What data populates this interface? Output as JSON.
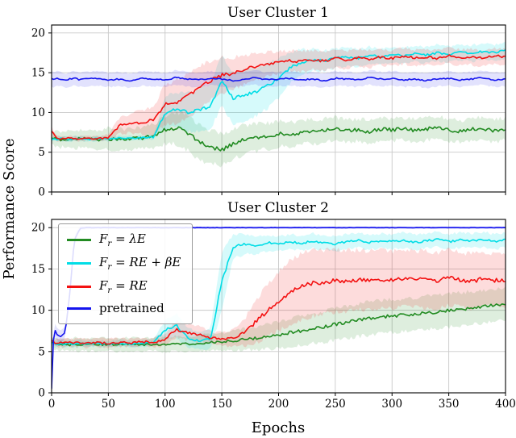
{
  "figure": {
    "xlabel": "Epochs",
    "ylabel": "Performance Score",
    "background": "#ffffff",
    "grid_color": "#c9c9c9",
    "axis_color": "#000000"
  },
  "chart_data": [
    {
      "type": "line",
      "title": "User Cluster 1",
      "xlim": [
        0,
        400
      ],
      "ylim": [
        0,
        21
      ],
      "xticks": [
        0,
        50,
        100,
        150,
        200,
        250,
        300,
        350,
        400
      ],
      "yticks": [
        0,
        5,
        10,
        15,
        20
      ],
      "grid": true,
      "legend": {
        "show": false
      },
      "x": [
        0,
        2,
        5,
        8,
        12,
        16,
        20,
        25,
        30,
        40,
        50,
        60,
        70,
        80,
        90,
        100,
        110,
        120,
        130,
        140,
        150,
        160,
        170,
        180,
        190,
        200,
        210,
        220,
        230,
        240,
        250,
        260,
        270,
        280,
        290,
        300,
        310,
        320,
        330,
        340,
        350,
        360,
        370,
        380,
        390,
        400
      ],
      "series": [
        {
          "name": "fr-lambda-e",
          "label": "F_r = λE",
          "math": true,
          "color": "#228B22",
          "band_alpha": 0.15,
          "noise": 0.28,
          "values": [
            6.8,
            6.7,
            6.7,
            6.6,
            6.7,
            6.7,
            6.6,
            6.7,
            6.7,
            6.6,
            6.7,
            6.6,
            6.7,
            6.8,
            7.0,
            7.8,
            8.1,
            7.4,
            6.3,
            5.6,
            5.3,
            6.0,
            6.6,
            6.8,
            7.0,
            7.3,
            7.2,
            7.5,
            7.6,
            7.7,
            7.9,
            7.7,
            7.8,
            7.6,
            7.9,
            7.8,
            8.0,
            7.7,
            7.9,
            8.1,
            7.8,
            7.6,
            7.9,
            8.0,
            7.7,
            7.9
          ],
          "band": [
            0.8,
            0.9,
            0.9,
            1.0,
            1.0,
            1.0,
            1.1,
            1.1,
            1.1,
            1.2,
            1.3,
            1.3,
            1.3,
            1.4,
            1.5,
            1.8,
            2.0,
            2.2,
            2.2,
            2.1,
            2.0,
            1.9,
            1.8,
            1.7,
            1.6,
            1.6,
            1.5,
            1.5,
            1.5,
            1.5,
            1.5,
            1.4,
            1.4,
            1.4,
            1.4,
            1.4,
            1.4,
            1.4,
            1.4,
            1.4,
            1.4,
            1.4,
            1.4,
            1.4,
            1.4,
            1.4
          ]
        },
        {
          "name": "fr-re-beta-e",
          "label": "F_r = RE + βE",
          "math": true,
          "color": "#00DDE6",
          "band_alpha": 0.16,
          "noise": 0.2,
          "values": [
            6.7,
            6.7,
            6.6,
            6.7,
            6.7,
            6.6,
            6.7,
            6.7,
            6.6,
            6.7,
            6.7,
            6.8,
            6.7,
            6.8,
            6.9,
            9.9,
            10.4,
            10.0,
            10.3,
            10.8,
            14.0,
            11.8,
            12.2,
            12.6,
            13.3,
            14.3,
            15.6,
            16.3,
            16.6,
            16.5,
            16.8,
            17.0,
            16.8,
            17.2,
            17.0,
            17.3,
            17.1,
            17.4,
            17.2,
            17.5,
            17.3,
            17.6,
            17.4,
            17.7,
            17.5,
            17.8
          ],
          "band": [
            0.3,
            0.3,
            0.3,
            0.3,
            0.3,
            0.3,
            0.3,
            0.3,
            0.3,
            0.3,
            0.3,
            0.3,
            0.3,
            0.3,
            0.3,
            2.0,
            2.2,
            2.4,
            2.6,
            2.9,
            3.1,
            3.3,
            3.2,
            3.0,
            2.8,
            2.5,
            2.0,
            1.6,
            1.4,
            1.3,
            1.2,
            1.2,
            1.1,
            1.1,
            1.0,
            1.0,
            1.0,
            1.0,
            1.0,
            1.0,
            1.0,
            1.0,
            1.0,
            1.0,
            1.0,
            1.0
          ]
        },
        {
          "name": "fr-re",
          "label": "F_r = RE",
          "math": true,
          "color": "#F31212",
          "band_alpha": 0.15,
          "noise": 0.22,
          "values": [
            7.7,
            7.2,
            6.8,
            6.7,
            6.7,
            6.8,
            6.7,
            6.7,
            6.8,
            6.7,
            6.8,
            8.4,
            8.6,
            8.8,
            9.0,
            11.0,
            11.3,
            12.1,
            13.1,
            14.0,
            14.7,
            14.9,
            15.4,
            15.8,
            16.1,
            16.3,
            16.5,
            16.4,
            16.6,
            16.5,
            16.8,
            16.6,
            16.9,
            16.7,
            17.0,
            16.8,
            17.1,
            16.9,
            17.0,
            16.8,
            17.2,
            16.9,
            17.0,
            16.8,
            17.1,
            17.0
          ],
          "band": [
            0.5,
            0.4,
            0.4,
            0.3,
            0.3,
            0.3,
            0.3,
            0.3,
            0.3,
            0.3,
            0.4,
            1.0,
            1.2,
            1.5,
            1.8,
            2.5,
            2.7,
            2.8,
            2.7,
            2.5,
            2.3,
            2.0,
            1.8,
            1.6,
            1.5,
            1.4,
            1.3,
            1.3,
            1.2,
            1.2,
            1.2,
            1.1,
            1.1,
            1.1,
            1.0,
            1.0,
            1.0,
            1.0,
            1.0,
            1.0,
            1.0,
            1.0,
            1.0,
            1.0,
            1.0,
            1.0
          ]
        },
        {
          "name": "pretrained",
          "label": "pretrained",
          "math": false,
          "color": "#1414EE",
          "band_alpha": 0.12,
          "noise": 0.13,
          "values": [
            14.2,
            14.1,
            14.3,
            14.2,
            14.0,
            14.2,
            14.3,
            14.1,
            14.2,
            14.3,
            14.1,
            14.2,
            14.0,
            14.3,
            14.2,
            14.1,
            14.4,
            14.2,
            14.1,
            14.3,
            14.2,
            14.0,
            14.2,
            14.4,
            14.1,
            14.2,
            14.3,
            14.1,
            14.2,
            14.0,
            14.3,
            14.2,
            14.1,
            14.4,
            14.2,
            14.3,
            14.1,
            14.2,
            14.0,
            14.2,
            14.3,
            14.1,
            14.2,
            14.4,
            14.1,
            14.2
          ],
          "band": 0.9
        }
      ]
    },
    {
      "type": "line",
      "title": "User Cluster 2",
      "xlim": [
        0,
        400
      ],
      "ylim": [
        0,
        21
      ],
      "xticks": [
        0,
        50,
        100,
        150,
        200,
        250,
        300,
        350,
        400
      ],
      "yticks": [
        0,
        5,
        10,
        15,
        20
      ],
      "grid": true,
      "legend": {
        "show": true,
        "loc": "upper-left"
      },
      "x": [
        0,
        2,
        5,
        8,
        12,
        16,
        20,
        25,
        30,
        40,
        50,
        60,
        70,
        80,
        90,
        100,
        110,
        120,
        130,
        140,
        150,
        160,
        170,
        180,
        190,
        200,
        210,
        220,
        230,
        240,
        250,
        260,
        270,
        280,
        290,
        300,
        310,
        320,
        330,
        340,
        350,
        360,
        370,
        380,
        390,
        400
      ],
      "series": [
        {
          "name": "fr-lambda-e",
          "label": "F_r = λE",
          "math": true,
          "color": "#228B22",
          "band_alpha": 0.15,
          "noise": 0.2,
          "values": [
            6.1,
            6.0,
            5.9,
            5.8,
            5.9,
            5.8,
            5.9,
            5.8,
            5.9,
            5.8,
            5.9,
            5.8,
            5.9,
            5.8,
            5.9,
            5.8,
            6.0,
            5.9,
            6.0,
            6.1,
            6.2,
            6.3,
            6.5,
            6.6,
            6.8,
            7.0,
            7.3,
            7.5,
            7.8,
            8.0,
            8.3,
            8.5,
            8.8,
            9.0,
            9.2,
            9.3,
            9.4,
            9.5,
            9.7,
            9.8,
            10.0,
            10.1,
            10.3,
            10.4,
            10.6,
            10.8
          ],
          "band": [
            0.6,
            0.7,
            0.7,
            0.7,
            0.7,
            0.7,
            0.8,
            0.8,
            0.8,
            0.8,
            0.8,
            0.8,
            0.8,
            0.8,
            0.8,
            0.9,
            0.9,
            0.9,
            1.0,
            1.0,
            1.1,
            1.2,
            1.3,
            1.4,
            1.5,
            1.6,
            1.7,
            1.8,
            1.8,
            1.9,
            1.9,
            2.0,
            2.0,
            2.0,
            2.0,
            2.0,
            2.0,
            2.0,
            2.0,
            2.0,
            2.0,
            2.0,
            2.0,
            2.0,
            2.0,
            2.0
          ]
        },
        {
          "name": "fr-re-beta-e",
          "label": "F_r = RE + βE",
          "math": true,
          "color": "#00DDE6",
          "band_alpha": 0.16,
          "noise": 0.2,
          "values": [
            6.1,
            6.0,
            5.9,
            6.0,
            5.9,
            6.0,
            5.9,
            6.0,
            5.9,
            6.0,
            5.9,
            6.0,
            5.9,
            6.0,
            6.1,
            7.6,
            8.2,
            6.6,
            6.3,
            6.5,
            13.5,
            17.7,
            18.0,
            17.8,
            18.2,
            18.0,
            18.3,
            18.1,
            18.4,
            18.2,
            18.0,
            18.3,
            18.5,
            18.2,
            18.4,
            18.3,
            18.5,
            18.2,
            18.4,
            18.6,
            18.3,
            18.5,
            18.4,
            18.6,
            18.3,
            18.5
          ],
          "band": [
            0.4,
            0.4,
            0.4,
            0.4,
            0.4,
            0.4,
            0.4,
            0.4,
            0.4,
            0.4,
            0.4,
            0.4,
            0.4,
            0.4,
            0.4,
            1.2,
            1.5,
            1.2,
            1.0,
            1.2,
            3.5,
            1.5,
            1.2,
            1.0,
            1.0,
            0.9,
            0.9,
            0.9,
            0.9,
            0.9,
            0.9,
            0.9,
            0.9,
            0.9,
            0.9,
            0.9,
            0.9,
            0.9,
            0.9,
            0.9,
            0.9,
            0.9,
            0.9,
            0.9,
            0.9,
            0.9
          ]
        },
        {
          "name": "fr-re",
          "label": "F_r = RE",
          "math": true,
          "color": "#F31212",
          "band_alpha": 0.15,
          "noise": 0.25,
          "values": [
            6.3,
            6.1,
            6.0,
            6.1,
            6.0,
            6.1,
            6.0,
            6.1,
            6.0,
            6.1,
            6.0,
            6.1,
            6.0,
            6.2,
            6.1,
            6.5,
            7.7,
            7.3,
            7.1,
            6.7,
            6.5,
            6.6,
            7.3,
            8.6,
            9.9,
            11.1,
            12.1,
            12.9,
            13.3,
            13.4,
            13.6,
            13.5,
            13.7,
            13.6,
            13.8,
            13.6,
            13.9,
            13.7,
            13.8,
            13.6,
            14.0,
            13.7,
            13.5,
            13.8,
            13.6,
            13.7
          ],
          "band": [
            0.5,
            0.5,
            0.5,
            0.5,
            0.5,
            0.5,
            0.5,
            0.5,
            0.5,
            0.5,
            0.5,
            0.5,
            0.5,
            0.5,
            0.5,
            0.8,
            1.0,
            1.0,
            0.9,
            0.8,
            0.8,
            1.0,
            1.6,
            2.6,
            3.1,
            3.6,
            3.9,
            4.0,
            4.0,
            3.9,
            3.8,
            3.7,
            3.6,
            3.6,
            3.5,
            3.5,
            3.5,
            3.4,
            3.4,
            3.4,
            3.3,
            3.3,
            3.3,
            3.2,
            3.2,
            3.2
          ]
        },
        {
          "name": "pretrained",
          "label": "pretrained",
          "math": false,
          "color": "#1414EE",
          "band_alpha": 0.12,
          "noise": 0.04,
          "values": [
            0.5,
            7.9,
            7.0,
            6.8,
            7.3,
            12.0,
            18.5,
            19.9,
            20.0,
            20.0,
            20.0,
            20.0,
            20.0,
            20.0,
            20.0,
            20.0,
            20.0,
            20.0,
            20.0,
            20.0,
            20.0,
            20.0,
            20.0,
            20.0,
            20.0,
            20.0,
            20.0,
            20.0,
            20.0,
            20.0,
            20.0,
            20.0,
            20.0,
            20.0,
            20.0,
            20.0,
            20.0,
            20.0,
            20.0,
            20.0,
            20.0,
            20.0,
            20.0,
            20.0,
            20.0,
            20.0
          ],
          "band": [
            0.8,
            0.8,
            0.8,
            0.8,
            0.7,
            0.6,
            0.5,
            0.3,
            0.2,
            0.15,
            0.15,
            0.15,
            0.15,
            0.15,
            0.15,
            0.15,
            0.15,
            0.15,
            0.15,
            0.15,
            0.15,
            0.15,
            0.15,
            0.15,
            0.15,
            0.15,
            0.15,
            0.15,
            0.15,
            0.15,
            0.15,
            0.15,
            0.15,
            0.15,
            0.15,
            0.15,
            0.15,
            0.15,
            0.15,
            0.15,
            0.15,
            0.15,
            0.15,
            0.15,
            0.15,
            0.15
          ]
        }
      ]
    }
  ]
}
